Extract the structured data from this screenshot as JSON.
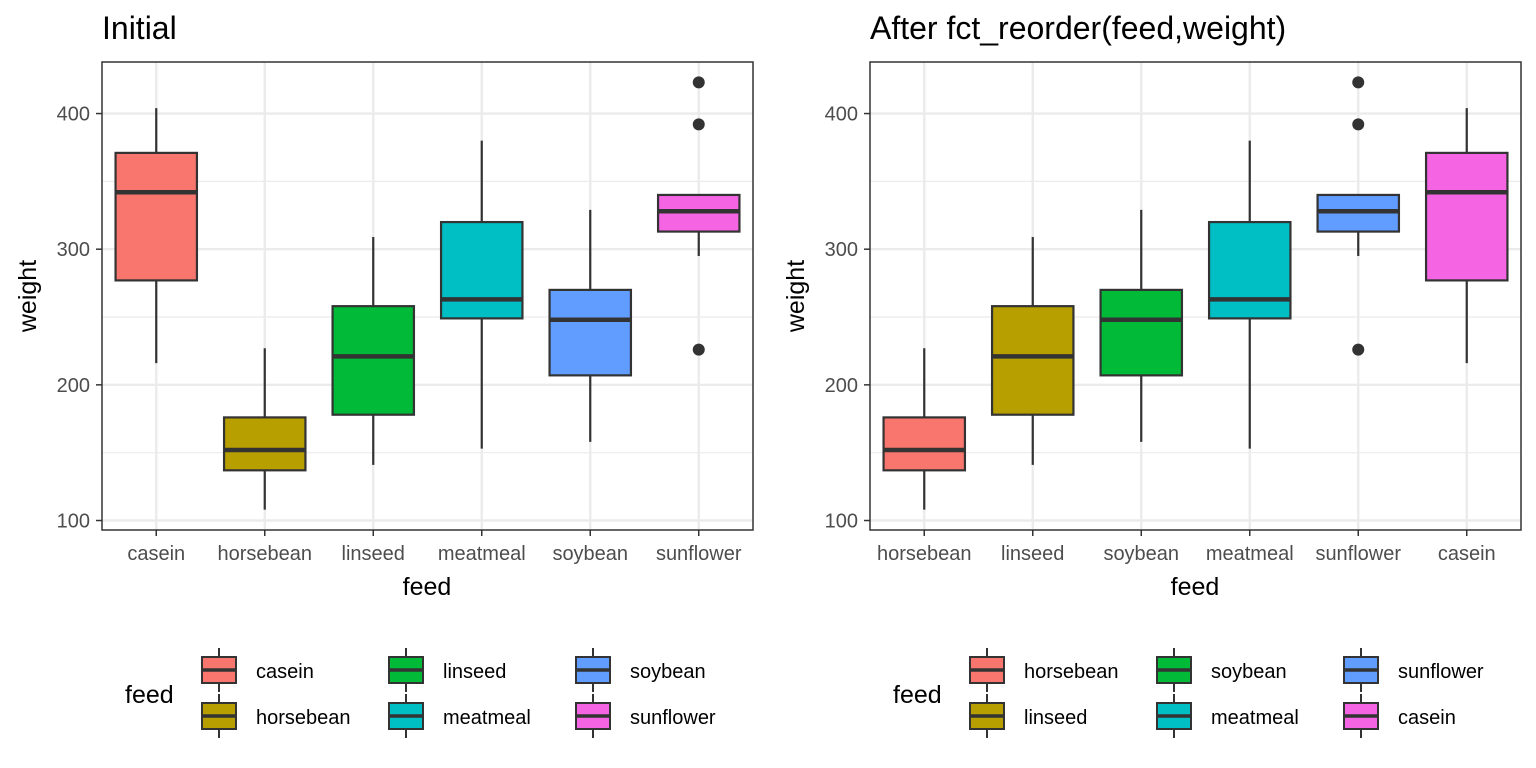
{
  "chart_data": [
    {
      "type": "boxplot",
      "title": "Initial",
      "xlabel": "feed",
      "ylabel": "weight",
      "ylim": [
        93,
        438
      ],
      "yticks": [
        100,
        200,
        300,
        400
      ],
      "grid": true,
      "categories": [
        "casein",
        "horsebean",
        "linseed",
        "meatmeal",
        "soybean",
        "sunflower"
      ],
      "boxes": [
        {
          "category": "casein",
          "fill": "#F8766D",
          "whisker_low": 216,
          "q1": 277,
          "median": 342,
          "q3": 371,
          "whisker_high": 404,
          "outliers": []
        },
        {
          "category": "horsebean",
          "fill": "#B79F00",
          "whisker_low": 108,
          "q1": 137,
          "median": 152,
          "q3": 176,
          "whisker_high": 227,
          "outliers": []
        },
        {
          "category": "linseed",
          "fill": "#00BA38",
          "whisker_low": 141,
          "q1": 178,
          "median": 221,
          "q3": 258,
          "whisker_high": 309,
          "outliers": []
        },
        {
          "category": "meatmeal",
          "fill": "#00BFC4",
          "whisker_low": 153,
          "q1": 249,
          "median": 263,
          "q3": 320,
          "whisker_high": 380,
          "outliers": []
        },
        {
          "category": "soybean",
          "fill": "#619CFF",
          "whisker_low": 158,
          "q1": 207,
          "median": 248,
          "q3": 270,
          "whisker_high": 329,
          "outliers": []
        },
        {
          "category": "sunflower",
          "fill": "#F564E3",
          "whisker_low": 295,
          "q1": 313,
          "median": 328,
          "q3": 340,
          "whisker_high": 340,
          "outliers": [
            423,
            392,
            226
          ]
        }
      ],
      "legend": {
        "title": "feed",
        "placement": "bottom",
        "entries": [
          {
            "label": "casein",
            "fill": "#F8766D"
          },
          {
            "label": "horsebean",
            "fill": "#B79F00"
          },
          {
            "label": "linseed",
            "fill": "#00BA38"
          },
          {
            "label": "meatmeal",
            "fill": "#00BFC4"
          },
          {
            "label": "soybean",
            "fill": "#619CFF"
          },
          {
            "label": "sunflower",
            "fill": "#F564E3"
          }
        ]
      }
    },
    {
      "type": "boxplot",
      "title": "After fct_reorder(feed,weight)",
      "xlabel": "feed",
      "ylabel": "weight",
      "ylim": [
        93,
        438
      ],
      "yticks": [
        100,
        200,
        300,
        400
      ],
      "grid": true,
      "categories": [
        "horsebean",
        "linseed",
        "soybean",
        "meatmeal",
        "sunflower",
        "casein"
      ],
      "boxes": [
        {
          "category": "horsebean",
          "fill": "#F8766D",
          "whisker_low": 108,
          "q1": 137,
          "median": 152,
          "q3": 176,
          "whisker_high": 227,
          "outliers": []
        },
        {
          "category": "linseed",
          "fill": "#B79F00",
          "whisker_low": 141,
          "q1": 178,
          "median": 221,
          "q3": 258,
          "whisker_high": 309,
          "outliers": []
        },
        {
          "category": "soybean",
          "fill": "#00BA38",
          "whisker_low": 158,
          "q1": 207,
          "median": 248,
          "q3": 270,
          "whisker_high": 329,
          "outliers": []
        },
        {
          "category": "meatmeal",
          "fill": "#00BFC4",
          "whisker_low": 153,
          "q1": 249,
          "median": 263,
          "q3": 320,
          "whisker_high": 380,
          "outliers": []
        },
        {
          "category": "sunflower",
          "fill": "#619CFF",
          "whisker_low": 295,
          "q1": 313,
          "median": 328,
          "q3": 340,
          "whisker_high": 340,
          "outliers": [
            423,
            392,
            226
          ]
        },
        {
          "category": "casein",
          "fill": "#F564E3",
          "whisker_low": 216,
          "q1": 277,
          "median": 342,
          "q3": 371,
          "whisker_high": 404,
          "outliers": []
        }
      ],
      "legend": {
        "title": "feed",
        "placement": "bottom",
        "entries": [
          {
            "label": "horsebean",
            "fill": "#F8766D"
          },
          {
            "label": "linseed",
            "fill": "#B79F00"
          },
          {
            "label": "soybean",
            "fill": "#00BA38"
          },
          {
            "label": "meatmeal",
            "fill": "#00BFC4"
          },
          {
            "label": "sunflower",
            "fill": "#619CFF"
          },
          {
            "label": "casein",
            "fill": "#F564E3"
          }
        ]
      }
    }
  ]
}
